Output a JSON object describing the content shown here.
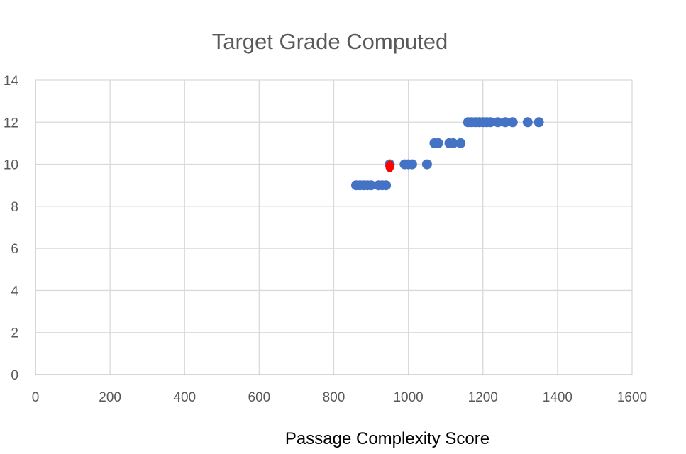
{
  "chart_data": {
    "type": "scatter",
    "title": "Target Grade Computed",
    "xlabel": "Passage Complexity Score",
    "ylabel": "",
    "xlim": [
      0,
      1600
    ],
    "ylim": [
      0,
      14
    ],
    "x_ticks": [
      0,
      200,
      400,
      600,
      800,
      1000,
      1200,
      1400,
      1600
    ],
    "y_ticks": [
      0,
      2,
      4,
      6,
      8,
      10,
      12,
      14
    ],
    "grid": true,
    "legend": "none",
    "series": [
      {
        "color": "#4472c4",
        "points": [
          [
            860,
            9
          ],
          [
            870,
            9
          ],
          [
            880,
            9
          ],
          [
            890,
            9
          ],
          [
            900,
            9
          ],
          [
            920,
            9
          ],
          [
            930,
            9
          ],
          [
            940,
            9
          ],
          [
            950,
            10
          ],
          [
            990,
            10
          ],
          [
            1000,
            10
          ],
          [
            1010,
            10
          ],
          [
            1050,
            10
          ],
          [
            1070,
            11
          ],
          [
            1080,
            11
          ],
          [
            1110,
            11
          ],
          [
            1120,
            11
          ],
          [
            1140,
            11
          ],
          [
            1160,
            12
          ],
          [
            1170,
            12
          ],
          [
            1180,
            12
          ],
          [
            1190,
            12
          ],
          [
            1200,
            12
          ],
          [
            1210,
            12
          ],
          [
            1220,
            12
          ],
          [
            1240,
            12
          ],
          [
            1260,
            12
          ],
          [
            1280,
            12
          ],
          [
            1320,
            12
          ],
          [
            1350,
            12
          ]
        ]
      },
      {
        "color": "#ff0000",
        "points": [
          [
            950,
            9.9
          ]
        ]
      }
    ]
  }
}
